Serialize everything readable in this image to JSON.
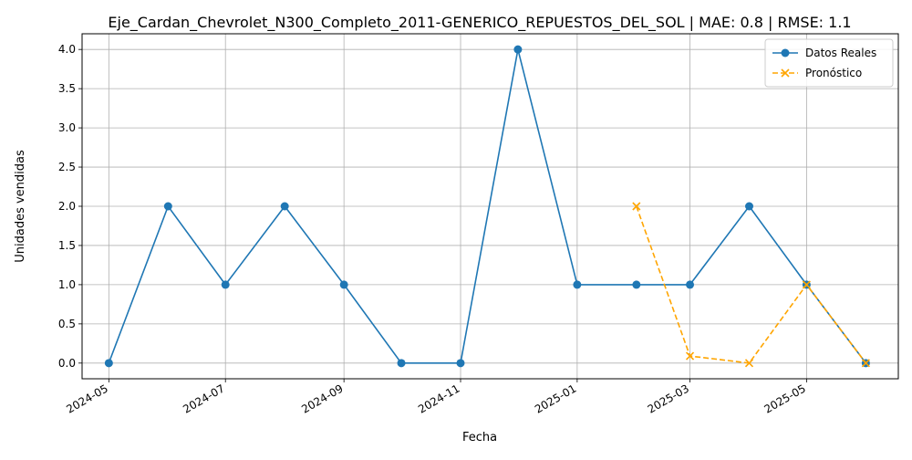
{
  "chart_data": {
    "type": "line",
    "title": "Eje_Cardan_Chevrolet_N300_Completo_2011-GENERICO_REPUESTOS_DEL_SOL | MAE: 0.8 | RMSE: 1.1",
    "xlabel": "Fecha",
    "ylabel": "Unidades vendidas",
    "ylim": [
      -0.2,
      4.2
    ],
    "xlim": [
      "2024-04-17",
      "2025-06-18"
    ],
    "grid": true,
    "legend_position": "upper right",
    "x_ticks": [
      "2024-05",
      "2024-07",
      "2024-09",
      "2024-11",
      "2025-01",
      "2025-03",
      "2025-05"
    ],
    "y_ticks": [
      "0.0",
      "0.5",
      "1.0",
      "1.5",
      "2.0",
      "2.5",
      "3.0",
      "3.5",
      "4.0"
    ],
    "series": [
      {
        "name": "Datos Reales",
        "color": "#1f77b4",
        "marker": "circle",
        "linestyle": "solid",
        "x": [
          "2024-05-01",
          "2024-06-01",
          "2024-07-01",
          "2024-08-01",
          "2024-09-01",
          "2024-10-01",
          "2024-11-01",
          "2024-12-01",
          "2025-01-01",
          "2025-02-01",
          "2025-03-01",
          "2025-04-01",
          "2025-05-01",
          "2025-06-01"
        ],
        "y": [
          0,
          2,
          1,
          2,
          1,
          0,
          0,
          4,
          1,
          1,
          1,
          2,
          1,
          0
        ]
      },
      {
        "name": "Pronóstico",
        "color": "#ffa500",
        "marker": "x",
        "linestyle": "dashed",
        "x": [
          "2025-02-01",
          "2025-03-01",
          "2025-04-01",
          "2025-05-01",
          "2025-06-01"
        ],
        "y": [
          2.0,
          0.09,
          0.0,
          1.0,
          0.0
        ]
      }
    ]
  }
}
